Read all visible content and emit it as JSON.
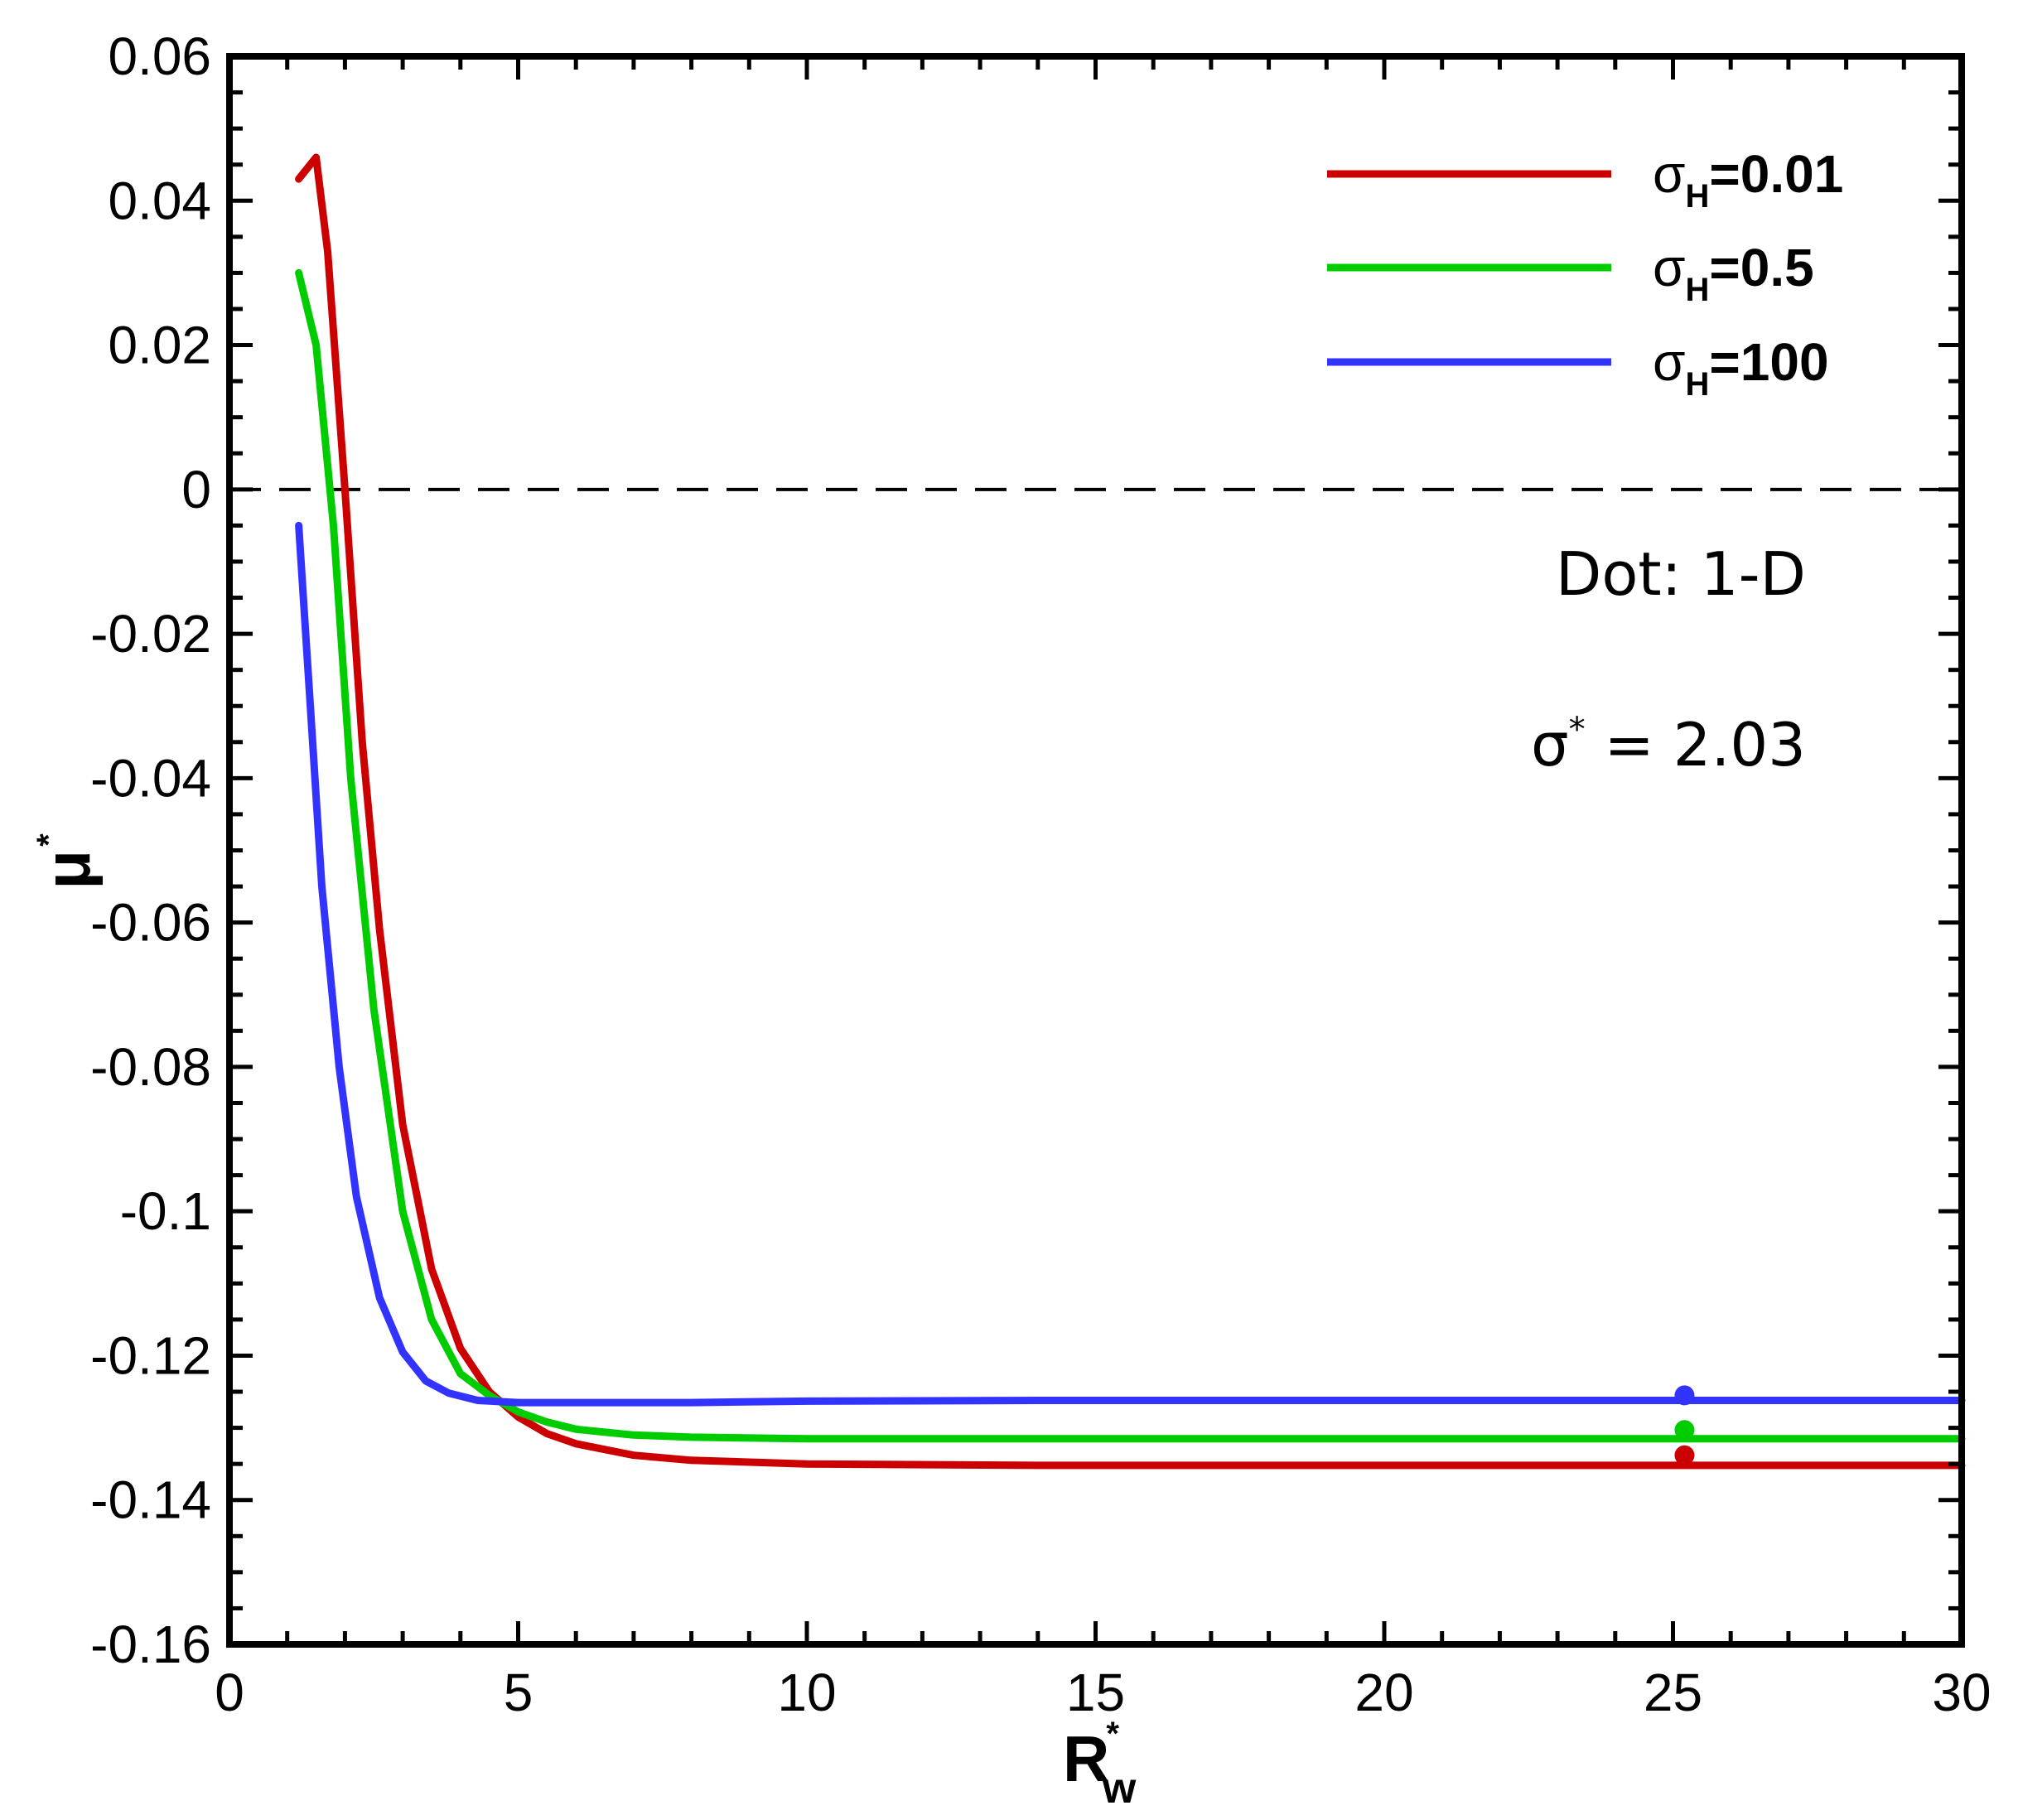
{
  "chart_data": {
    "type": "line",
    "xlabel": {
      "main": "R",
      "sub": "w",
      "sup": "*"
    },
    "ylabel": {
      "main": "μ",
      "sup": "*"
    },
    "xlim": [
      0,
      30
    ],
    "ylim": [
      -0.16,
      0.06
    ],
    "xticks": [
      0,
      5,
      10,
      15,
      20,
      25,
      30
    ],
    "xtick_labels": [
      "0",
      "5",
      "10",
      "15",
      "20",
      "25",
      "30"
    ],
    "yticks": [
      0.06,
      0.04,
      0.02,
      0,
      -0.02,
      -0.04,
      -0.06,
      -0.08,
      -0.1,
      -0.12,
      -0.14,
      -0.16
    ],
    "ytick_labels": [
      "0.06",
      "0.04",
      "0.02",
      "0",
      "-0.02",
      "-0.04",
      "-0.06",
      "-0.08",
      "-0.1",
      "-0.12",
      "-0.14",
      "-0.16"
    ],
    "grid": false,
    "legend_position": "top-right",
    "reference_line": {
      "y": 0,
      "style": "dashed",
      "color": "#000000"
    },
    "annotations": [
      {
        "text": "Dot: 1-D"
      },
      {
        "main": "σ",
        "sup": "*",
        "rest": " = 2.03"
      }
    ],
    "series": [
      {
        "name": "σH=0.01",
        "legend_main": "σ",
        "legend_sub": "H",
        "legend_rest": "=0.01",
        "color": "#cc0000",
        "x": [
          1.2,
          1.5,
          1.7,
          2.0,
          2.3,
          2.6,
          3.0,
          3.5,
          4.0,
          4.5,
          5.0,
          5.5,
          6.0,
          7.0,
          8.0,
          10.0,
          14.0,
          20.0,
          30.0
        ],
        "y": [
          0.043,
          0.046,
          0.033,
          0.0,
          -0.035,
          -0.061,
          -0.088,
          -0.108,
          -0.119,
          -0.125,
          -0.1285,
          -0.1308,
          -0.1322,
          -0.1338,
          -0.1345,
          -0.135,
          -0.1352,
          -0.1352,
          -0.1352
        ],
        "dot": {
          "x": 25.2,
          "y": -0.1338
        }
      },
      {
        "name": "σH=0.5",
        "legend_main": "σ",
        "legend_sub": "H",
        "legend_rest": "=0.5",
        "color": "#00cc00",
        "x": [
          1.2,
          1.5,
          1.8,
          2.1,
          2.5,
          3.0,
          3.5,
          4.0,
          4.5,
          5.0,
          5.5,
          6.0,
          7.0,
          8.0,
          10.0,
          14.0,
          20.0,
          30.0
        ],
        "y": [
          0.03,
          0.02,
          -0.005,
          -0.04,
          -0.072,
          -0.1,
          -0.115,
          -0.1225,
          -0.1255,
          -0.1278,
          -0.1292,
          -0.1302,
          -0.131,
          -0.1313,
          -0.1315,
          -0.1315,
          -0.1315,
          -0.1315
        ],
        "dot": {
          "x": 25.2,
          "y": -0.1303
        }
      },
      {
        "name": "σH=100",
        "legend_main": "σ",
        "legend_sub": "H",
        "legend_rest": "=100",
        "color": "#3333ff",
        "x": [
          1.2,
          1.4,
          1.6,
          1.9,
          2.2,
          2.6,
          3.0,
          3.4,
          3.8,
          4.3,
          5.0,
          6.0,
          8.0,
          10.0,
          14.0,
          20.0,
          30.0
        ],
        "y": [
          -0.005,
          -0.03,
          -0.055,
          -0.08,
          -0.098,
          -0.112,
          -0.1195,
          -0.1235,
          -0.1252,
          -0.1262,
          -0.1265,
          -0.1265,
          -0.1265,
          -0.1263,
          -0.1262,
          -0.1262,
          -0.1262
        ],
        "dot": {
          "x": 25.2,
          "y": -0.1255
        }
      }
    ]
  }
}
